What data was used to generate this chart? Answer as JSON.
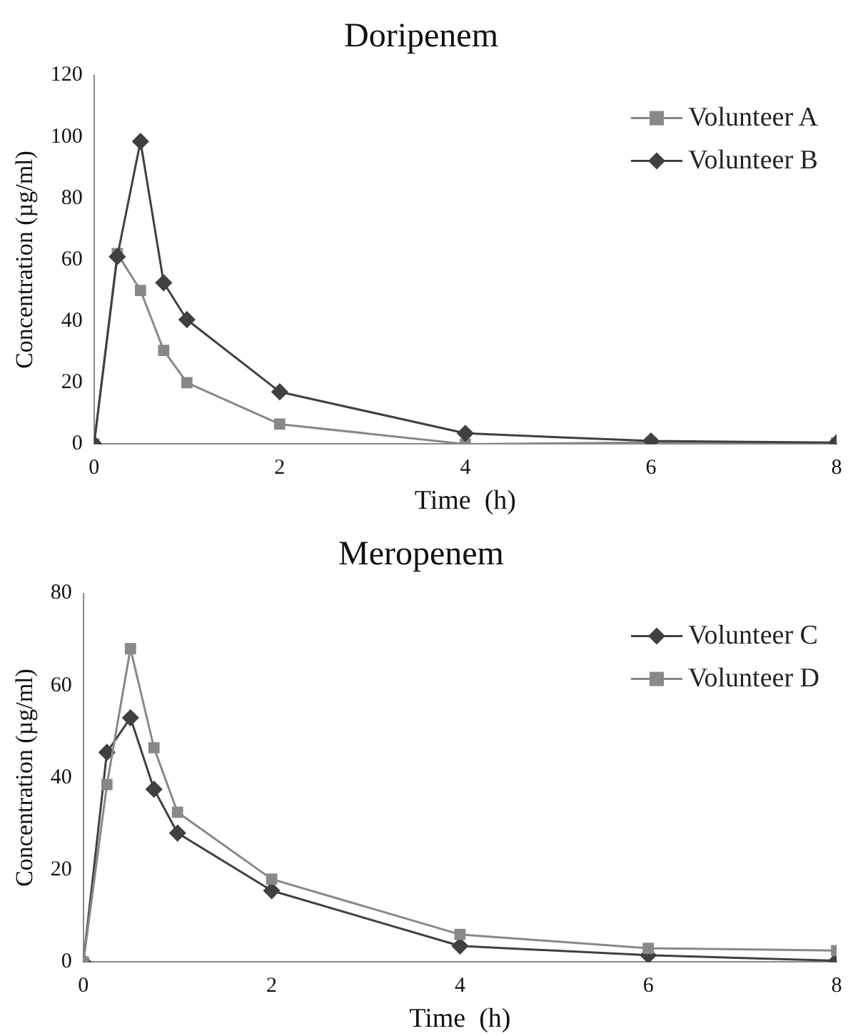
{
  "chart_data": [
    {
      "type": "line",
      "title": "Doripenem",
      "xlabel": "Time  (h)",
      "ylabel": "Concentration (µg/ml)",
      "xlim": [
        0,
        8
      ],
      "xticks": [
        0,
        2,
        4,
        6,
        8
      ],
      "ylim": [
        0,
        120
      ],
      "yticks": [
        0,
        20,
        40,
        60,
        80,
        100,
        120
      ],
      "grid": false,
      "legend": "top right",
      "x": [
        0,
        0.25,
        0.5,
        0.75,
        1,
        2,
        4,
        6,
        8
      ],
      "series": [
        {
          "name": "Volunteer A",
          "color": "#888888",
          "marker": "square",
          "values": [
            0,
            62,
            50,
            30.5,
            20,
            6.5,
            0,
            0.5,
            0.3
          ]
        },
        {
          "name": "Volunteer B",
          "color": "#404040",
          "marker": "diamond",
          "values": [
            0,
            61,
            98.5,
            52.5,
            40.5,
            17,
            3.5,
            1,
            0.5
          ]
        }
      ]
    },
    {
      "type": "line",
      "title": "Meropenem",
      "xlabel": "Time  (h)",
      "ylabel": "Concentration (µg/ml)",
      "xlim": [
        0,
        8
      ],
      "xticks": [
        0,
        2,
        4,
        6,
        8
      ],
      "ylim": [
        0,
        80
      ],
      "yticks": [
        0,
        20,
        40,
        60,
        80
      ],
      "grid": false,
      "legend": "top right",
      "x": [
        0,
        0.25,
        0.5,
        0.75,
        1,
        2,
        4,
        6,
        8
      ],
      "series": [
        {
          "name": "Volunteer C",
          "color": "#404040",
          "marker": "diamond",
          "values": [
            0,
            45.5,
            53,
            37.5,
            28,
            15.5,
            3.5,
            1.5,
            0.3
          ]
        },
        {
          "name": "Volunteer D",
          "color": "#888888",
          "marker": "square",
          "values": [
            0,
            38.5,
            68,
            46.5,
            32.5,
            18,
            6,
            3,
            2.5
          ]
        }
      ]
    }
  ]
}
